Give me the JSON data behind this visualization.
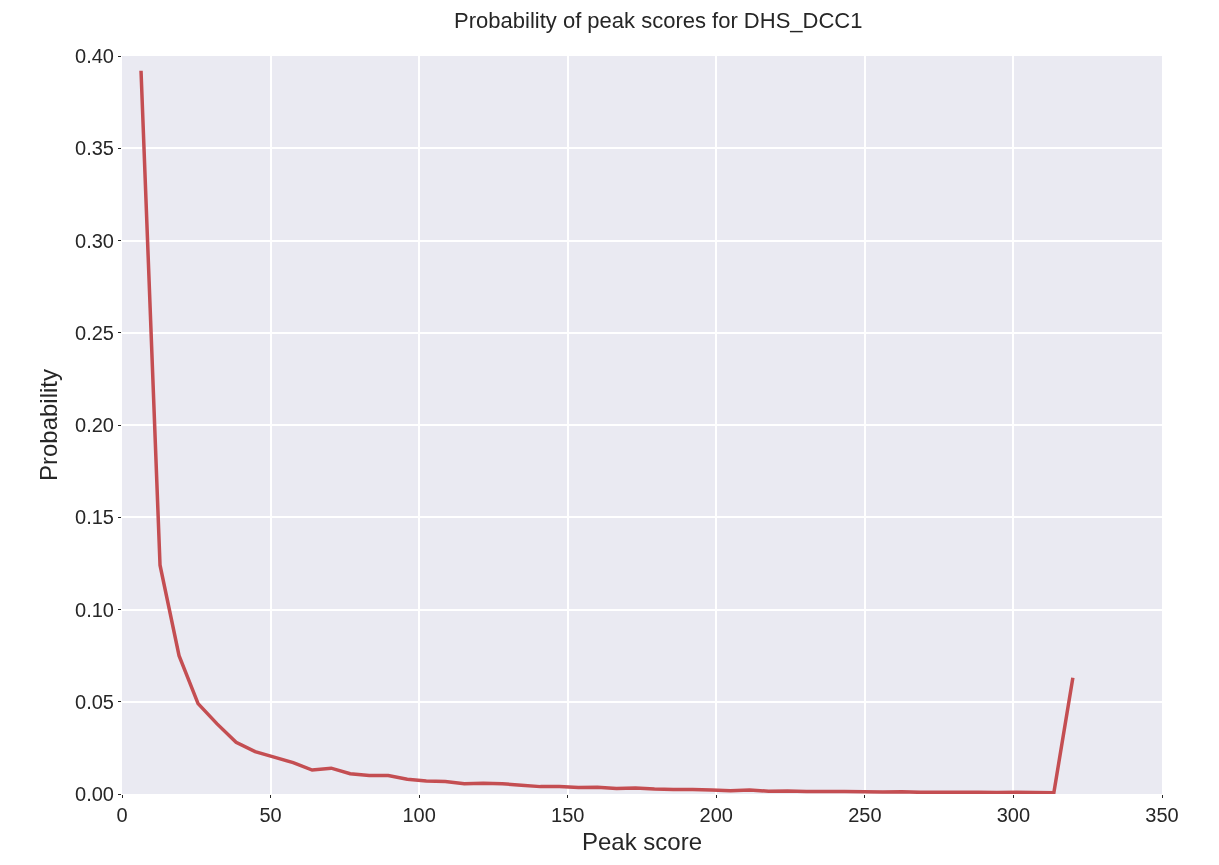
{
  "chart_data": {
    "type": "line",
    "title": "Probability of peak scores for DHS_DCC1",
    "xlabel": "Peak score",
    "ylabel": "Probability",
    "x": [
      6.4,
      12.8,
      19.2,
      25.6,
      32,
      38.4,
      44.8,
      51.2,
      57.6,
      64,
      70.4,
      76.8,
      83.2,
      89.6,
      96,
      102.4,
      108.8,
      115.2,
      121.6,
      128,
      134.4,
      140.8,
      147.2,
      153.6,
      160,
      166.4,
      172.8,
      179.2,
      185.6,
      192,
      198.4,
      204.8,
      211.2,
      217.6,
      224,
      230.4,
      236.8,
      243.2,
      249.6,
      256,
      262.4,
      268.8,
      275.2,
      281.6,
      288,
      294.4,
      300.8,
      307.2,
      313.6,
      320
    ],
    "series": [
      {
        "color": "#c44e52",
        "values": [
          0.392,
          0.124,
          0.075,
          0.049,
          0.038,
          0.028,
          0.023,
          0.02,
          0.017,
          0.013,
          0.014,
          0.011,
          0.01,
          0.01,
          0.008,
          0.007,
          0.0068,
          0.0055,
          0.0058,
          0.0055,
          0.0048,
          0.004,
          0.004,
          0.0035,
          0.0037,
          0.003,
          0.0032,
          0.0027,
          0.0025,
          0.0025,
          0.0022,
          0.0018,
          0.0022,
          0.0015,
          0.0016,
          0.0013,
          0.0014,
          0.0014,
          0.0012,
          0.0011,
          0.0012,
          0.0009,
          0.001,
          0.0009,
          0.0009,
          0.0008,
          0.0009,
          0.0008,
          0.0007,
          0.063
        ]
      }
    ],
    "xlim": [
      0,
      350
    ],
    "xticks": [
      0,
      50,
      100,
      150,
      200,
      250,
      300,
      350
    ],
    "ylim": [
      0,
      0.4
    ],
    "yticks": [
      {
        "value": 0,
        "label": "0.00"
      },
      {
        "value": 0.05,
        "label": "0.05"
      },
      {
        "value": 0.1,
        "label": "0.10"
      },
      {
        "value": 0.15,
        "label": "0.15"
      },
      {
        "value": 0.2,
        "label": "0.20"
      },
      {
        "value": 0.25,
        "label": "0.25"
      },
      {
        "value": 0.3,
        "label": "0.30"
      },
      {
        "value": 0.35,
        "label": "0.35"
      },
      {
        "value": 0.4,
        "label": "0.40"
      }
    ],
    "grid": true
  }
}
